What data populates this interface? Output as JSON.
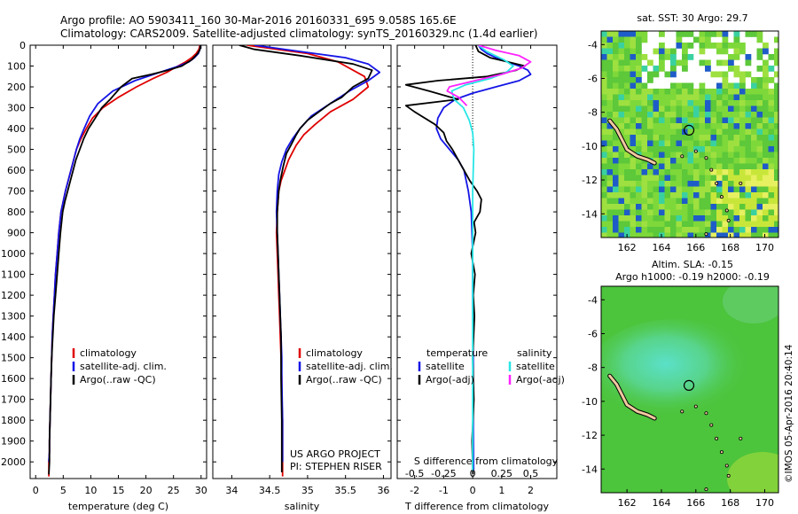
{
  "header": {
    "line1": "Argo profile: AO 5903411_160 30-Mar-2016 20160331_695 9.058S 165.6E",
    "line2": "Climatology: CARS2009. Satellite-adjusted climatology: synTS_20160329.nc (1.4d earlier)"
  },
  "colors": {
    "climatology": "#e00000",
    "satellite": "#1414e6",
    "argo": "#000000",
    "salinity_satellite": "#28e6e6",
    "salinity_argo": "#ff22ff"
  },
  "chart_data": [
    {
      "type": "line",
      "panel": "temperature",
      "xlabel": "temperature (deg C)",
      "ylabel": "",
      "xlim": [
        -1,
        31
      ],
      "ylim": [
        2080,
        0
      ],
      "xticks": [
        0,
        5,
        10,
        15,
        20,
        25,
        30
      ],
      "yticks": [
        0,
        100,
        200,
        300,
        400,
        500,
        600,
        700,
        800,
        900,
        1000,
        1100,
        1200,
        1300,
        1400,
        1500,
        1600,
        1700,
        1800,
        1900,
        2000
      ],
      "legend": [
        "climatology",
        "satellite-adj. clim.",
        "Argo(..raw -QC)"
      ],
      "series": [
        {
          "name": "climatology",
          "color": "#e00000",
          "x": [
            29.8,
            29.6,
            29.1,
            28.3,
            27.2,
            25.8,
            23.8,
            21.3,
            18.3,
            15.0,
            12.2,
            10.3,
            9.2,
            8.2,
            7.4,
            6.9,
            6.4,
            5.9,
            5.4,
            5.0,
            4.6,
            4.2,
            3.9,
            3.6,
            3.4,
            3.2,
            3.0,
            2.9,
            2.8,
            2.7,
            2.6,
            2.5,
            2.5,
            2.4,
            2.4
          ],
          "y": [
            0,
            20,
            40,
            60,
            80,
            100,
            130,
            160,
            200,
            250,
            300,
            350,
            400,
            450,
            500,
            550,
            600,
            650,
            700,
            750,
            800,
            900,
            1000,
            1100,
            1200,
            1300,
            1400,
            1500,
            1600,
            1700,
            1800,
            1900,
            1950,
            2000,
            2070
          ]
        },
        {
          "name": "satellite-adj. clim.",
          "color": "#1414e6",
          "x": [
            29.9,
            29.8,
            29.5,
            28.8,
            27.8,
            26.0,
            22.5,
            18.0,
            14.0,
            11.3,
            9.8,
            8.8,
            8.0,
            7.4,
            6.9,
            6.4,
            5.9,
            5.4,
            5.0,
            4.6,
            4.2,
            3.9,
            3.6,
            3.4,
            3.2,
            3.0,
            2.9,
            2.8,
            2.7,
            2.6,
            2.5,
            2.5,
            2.4
          ],
          "y": [
            0,
            20,
            40,
            60,
            80,
            100,
            130,
            170,
            220,
            280,
            340,
            400,
            450,
            500,
            550,
            600,
            650,
            700,
            750,
            800,
            900,
            1000,
            1100,
            1200,
            1300,
            1400,
            1500,
            1600,
            1700,
            1800,
            1900,
            1950,
            2000
          ]
        },
        {
          "name": "Argo(..raw -QC)",
          "color": "#000000",
          "x": [
            29.9,
            29.8,
            29.4,
            28.3,
            26.5,
            24.0,
            21.0,
            17.5,
            15.5,
            13.5,
            12.0,
            10.8,
            9.6,
            8.7,
            8.0,
            7.3,
            6.8,
            6.3,
            5.8,
            5.3,
            4.9,
            4.5,
            4.2,
            3.9,
            3.6,
            3.3,
            3.1,
            2.9,
            2.8,
            2.7,
            2.6,
            2.5,
            2.5,
            2.4
          ],
          "y": [
            0,
            20,
            40,
            70,
            100,
            120,
            140,
            160,
            200,
            260,
            300,
            350,
            400,
            450,
            500,
            550,
            600,
            650,
            700,
            750,
            800,
            900,
            1000,
            1100,
            1200,
            1300,
            1400,
            1500,
            1600,
            1700,
            1800,
            1900,
            2000,
            2060
          ]
        }
      ]
    },
    {
      "type": "line",
      "panel": "salinity",
      "xlabel": "salinity",
      "ylabel": "",
      "xlim": [
        33.75,
        36.1
      ],
      "ylim": [
        2080,
        0
      ],
      "xticks": [
        34,
        34.5,
        35,
        35.5,
        36
      ],
      "legend": [
        "climatology",
        "satellite-adj. clim.",
        "Argo(..raw -QC)"
      ],
      "annotations": [
        "US ARGO PROJECT",
        "PI: STEPHEN RISER"
      ],
      "series": [
        {
          "name": "climatology",
          "color": "#e00000",
          "x": [
            34.2,
            34.6,
            35.0,
            35.4,
            35.75,
            35.8,
            35.6,
            35.3,
            35.1,
            34.95,
            34.85,
            34.75,
            34.7,
            34.65,
            34.62,
            34.6,
            34.59,
            34.6,
            34.61,
            34.62,
            34.63,
            34.64,
            34.65,
            34.66,
            34.66,
            34.67,
            34.67
          ],
          "y": [
            0,
            20,
            40,
            80,
            150,
            200,
            260,
            320,
            380,
            430,
            480,
            550,
            600,
            650,
            700,
            800,
            900,
            1000,
            1100,
            1200,
            1300,
            1400,
            1500,
            1600,
            1700,
            1800,
            2070
          ]
        },
        {
          "name": "satellite-adj. clim.",
          "color": "#1414e6",
          "x": [
            34.3,
            34.9,
            35.5,
            35.8,
            35.95,
            35.8,
            35.55,
            35.3,
            35.05,
            34.9,
            34.8,
            34.72,
            34.66,
            34.62,
            34.6,
            34.59,
            34.6,
            34.61,
            34.62,
            34.63,
            34.64,
            34.65,
            34.66,
            34.66,
            34.67,
            34.67
          ],
          "y": [
            0,
            30,
            60,
            90,
            130,
            170,
            220,
            280,
            340,
            400,
            450,
            500,
            560,
            620,
            700,
            800,
            900,
            1000,
            1100,
            1200,
            1300,
            1400,
            1500,
            1600,
            1800,
            2000
          ]
        },
        {
          "name": "Argo(..raw -QC)",
          "color": "#000000",
          "x": [
            34.1,
            34.3,
            34.9,
            35.6,
            35.85,
            35.8,
            35.6,
            35.45,
            35.3,
            35.15,
            35.0,
            34.9,
            34.85,
            34.78,
            34.72,
            34.68,
            34.64,
            34.62,
            34.6,
            34.6,
            34.61,
            34.62,
            34.63,
            34.64,
            34.65,
            34.65,
            34.66,
            34.66
          ],
          "y": [
            0,
            20,
            50,
            90,
            120,
            160,
            200,
            250,
            280,
            320,
            360,
            400,
            430,
            480,
            520,
            580,
            650,
            700,
            800,
            900,
            1000,
            1100,
            1200,
            1300,
            1400,
            1600,
            1800,
            2050
          ]
        }
      ]
    },
    {
      "type": "line",
      "panel": "difference",
      "xlabel": "T difference from climatology",
      "xlabel_top": "S difference from climatology",
      "ylabel": "",
      "xlim": [
        -2.6,
        2.9
      ],
      "ylim": [
        2080,
        0
      ],
      "xticks": [
        -2,
        -1,
        0,
        1,
        2
      ],
      "xtick_labels": [
        "-2",
        "-1",
        "0",
        "1",
        "2"
      ],
      "sticks_value": [
        -0.5,
        -0.25,
        0,
        0.25,
        0.5
      ],
      "sticks_labels": [
        "-0.5",
        "-0.25",
        "0",
        "0.25",
        "0.5"
      ],
      "legend_temperature": [
        "temperature",
        "satellite",
        "Argo(-adj)"
      ],
      "legend_salinity": [
        "salinity",
        "satellite",
        "Argo(-adj)"
      ],
      "series": [
        {
          "name": "satellite",
          "variable": "temperature",
          "color": "#1414e6",
          "x": [
            0.2,
            0.3,
            0.5,
            0.8,
            1.2,
            1.6,
            1.9,
            2.0,
            1.6,
            0.8,
            0.0,
            -0.6,
            -1.0,
            -1.2,
            -1.25,
            -1.1,
            -0.8,
            -0.5,
            -0.3,
            -0.15,
            -0.05,
            0.0,
            0.0,
            0.02,
            0.02,
            0.03
          ],
          "y": [
            0,
            20,
            40,
            60,
            80,
            100,
            120,
            140,
            170,
            200,
            230,
            260,
            300,
            350,
            400,
            450,
            500,
            550,
            600,
            700,
            800,
            1000,
            1200,
            1500,
            1800,
            2040
          ]
        },
        {
          "name": "Argo(-adj)",
          "variable": "temperature",
          "color": "#000000",
          "x": [
            0.1,
            0.2,
            0.6,
            1.2,
            1.8,
            1.5,
            0.5,
            -1.2,
            -2.3,
            -1.5,
            -0.5,
            -2.3,
            -2.0,
            -1.3,
            -1.0,
            -0.9,
            -0.7,
            -0.5,
            -0.3,
            -0.1,
            0.15,
            0.3,
            0.25,
            0.05,
            0.1,
            -0.05,
            0.08,
            0.02,
            0.06,
            0.0,
            0.04,
            -0.02,
            0.01
          ],
          "y": [
            0,
            30,
            60,
            80,
            100,
            120,
            150,
            170,
            190,
            220,
            260,
            290,
            320,
            380,
            420,
            460,
            500,
            550,
            600,
            650,
            700,
            740,
            800,
            850,
            900,
            1000,
            1100,
            1200,
            1300,
            1500,
            1700,
            1900,
            2060
          ]
        },
        {
          "name": "satellite",
          "variable": "salinity",
          "color": "#28e6e6",
          "x": [
            0.05,
            0.12,
            0.27,
            0.35,
            0.29,
            0.15,
            -0.06,
            -0.18,
            -0.16,
            -0.08,
            -0.03,
            0.0,
            0.01,
            0.0,
            0.0,
            0.0
          ],
          "y": [
            0,
            30,
            70,
            100,
            130,
            160,
            190,
            220,
            260,
            300,
            360,
            420,
            500,
            700,
            1200,
            2040
          ]
        },
        {
          "name": "Argo(-adj)",
          "variable": "salinity",
          "color": "#ff22ff",
          "x": [
            0.05,
            0.2,
            0.4,
            0.5,
            0.42,
            0.25,
            0.02,
            -0.2,
            -0.22,
            -0.12,
            -0.05
          ],
          "y": [
            0,
            25,
            50,
            80,
            110,
            140,
            170,
            200,
            220,
            250,
            290
          ]
        }
      ]
    }
  ],
  "maps": {
    "sst": {
      "title": "sat. SST: 30 Argo: 29.7",
      "xticks": [
        162,
        164,
        166,
        168,
        170
      ],
      "yticks": [
        -4,
        -6,
        -8,
        -10,
        -12,
        -14
      ],
      "lon_range": [
        160.5,
        170.8
      ],
      "lat_range": [
        -15.4,
        -3.2
      ],
      "argo_position": {
        "lon": 165.6,
        "lat": -9.058
      }
    },
    "sla": {
      "title_line1": "Altim. SLA: -0.15",
      "title_line2": "Argo h1000: -0.19 h2000: -0.19",
      "xticks": [
        162,
        164,
        166,
        168,
        170
      ],
      "yticks": [
        -4,
        -6,
        -8,
        -10,
        -12,
        -14
      ],
      "lon_range": [
        160.5,
        170.8
      ],
      "lat_range": [
        -15.4,
        -3.2
      ],
      "argo_position": {
        "lon": 165.6,
        "lat": -9.058
      }
    }
  },
  "footer": {
    "copyright": "©IMOS 05-Apr-2016 20:40:14"
  }
}
